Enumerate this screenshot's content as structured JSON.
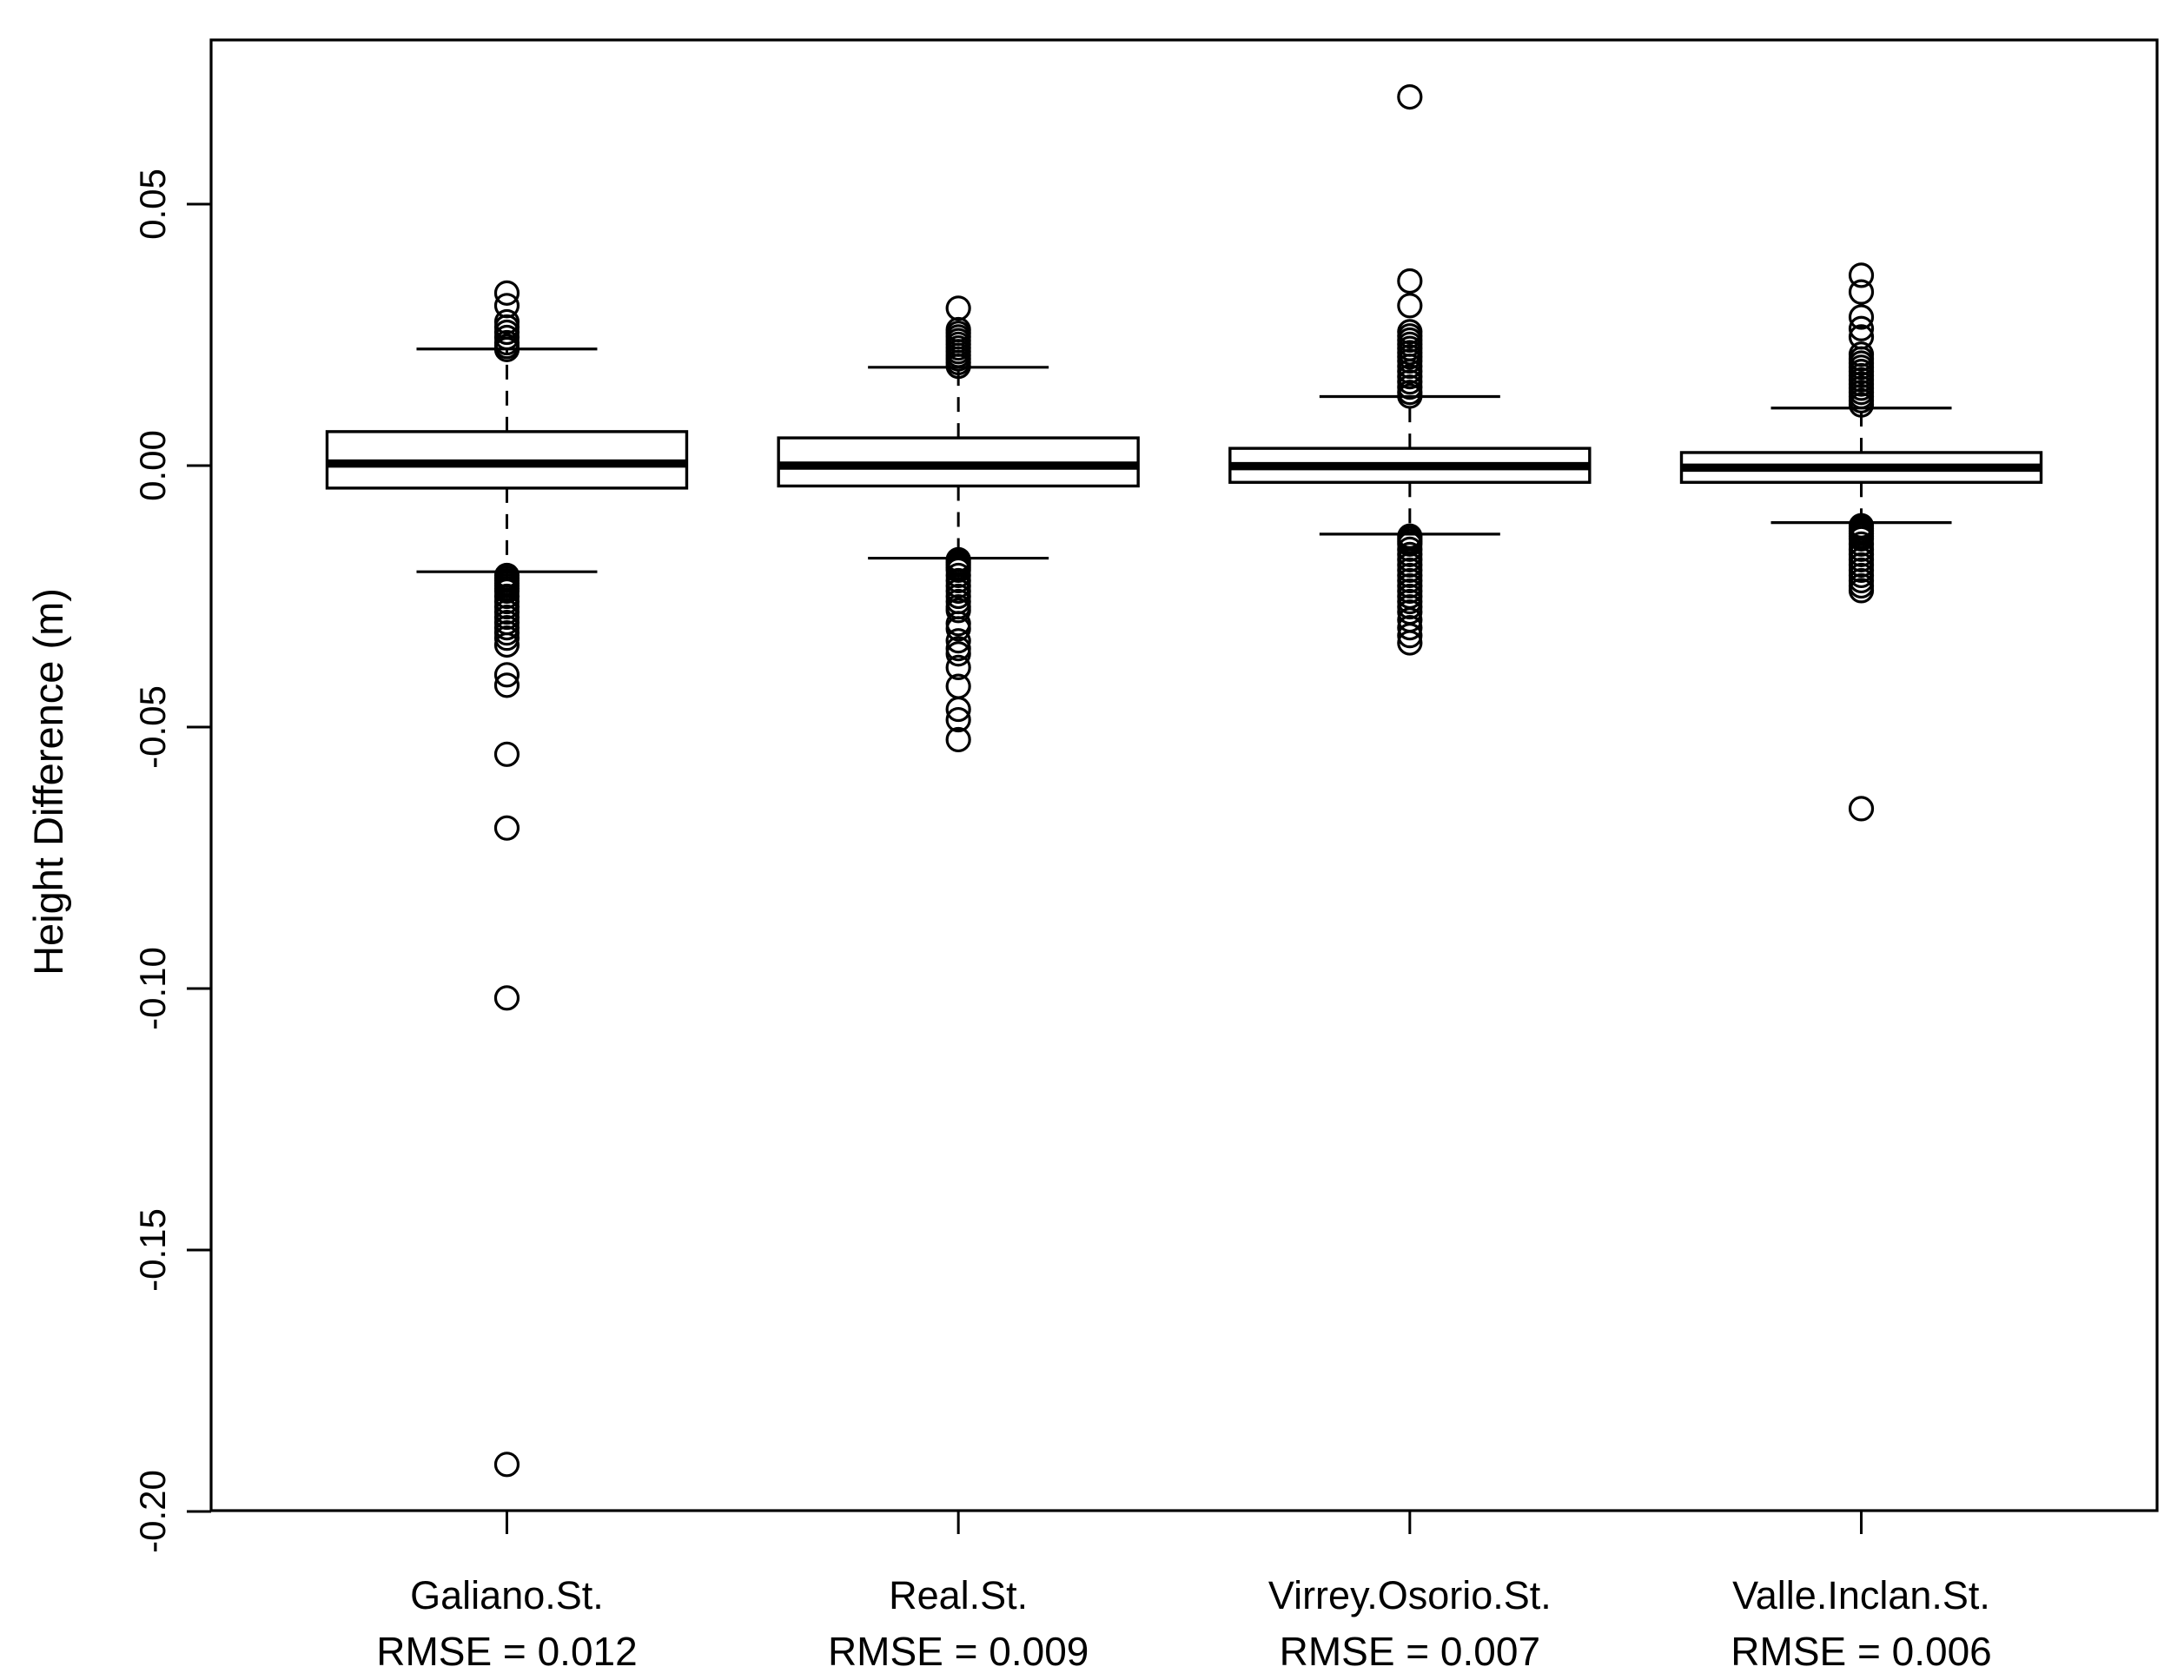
{
  "chart_data": {
    "type": "boxplot",
    "title": "",
    "xlabel": "",
    "ylabel": "Height Difference (m)",
    "ylim": [
      -0.2015,
      0.0815
    ],
    "grid": false,
    "legend": "none",
    "y_ticks": [
      {
        "value": 0.05,
        "label": "0.05"
      },
      {
        "value": 0.0,
        "label": "0.00"
      },
      {
        "value": -0.05,
        "label": "-0.05"
      },
      {
        "value": -0.1,
        "label": "-0.10"
      },
      {
        "value": -0.15,
        "label": "-0.15"
      },
      {
        "value": -0.2,
        "label": "-0.20"
      }
    ],
    "categories": [
      "Galiano.St.",
      "Real.St.",
      "Virrey.Osorio.St.",
      "Valle.Inclan.St."
    ],
    "rmse_labels": [
      "RMSE = 0.012",
      "RMSE = 0.009",
      "RMSE = 0.007",
      "RMSE = 0.006"
    ],
    "series": [
      {
        "name": "Galiano.St.",
        "rmse_label": "RMSE = 0.012",
        "whisker_low": -0.0203,
        "q1": -0.0043,
        "median": 0.0004,
        "q3": 0.0065,
        "whisker_high": 0.0223,
        "outliers_high": [
          0.033,
          0.0306,
          0.0275,
          0.0265,
          0.0255,
          0.0245,
          0.0235,
          0.0228,
          0.0222
        ],
        "outliers_low": [
          -0.021,
          -0.0215,
          -0.022,
          -0.0225,
          -0.023,
          -0.0235,
          -0.024,
          -0.025,
          -0.026,
          -0.027,
          -0.028,
          -0.029,
          -0.03,
          -0.031,
          -0.032,
          -0.033,
          -0.0343,
          -0.04,
          -0.042,
          -0.0552,
          -0.0693,
          -0.1018,
          -0.191
        ]
      },
      {
        "name": "Real.St.",
        "rmse_label": "RMSE = 0.009",
        "whisker_low": -0.0177,
        "q1": -0.0039,
        "median": 0.0,
        "q3": 0.0053,
        "whisker_high": 0.0188,
        "outliers_high": [
          0.0301,
          0.026,
          0.0253,
          0.0246,
          0.0239,
          0.0232,
          0.0225,
          0.0218,
          0.0211,
          0.0204,
          0.0197,
          0.019
        ],
        "outliers_low": [
          -0.018,
          -0.0185,
          -0.019,
          -0.0195,
          -0.02,
          -0.021,
          -0.022,
          -0.023,
          -0.024,
          -0.025,
          -0.026,
          -0.027,
          -0.0277,
          -0.0302,
          -0.0312,
          -0.0335,
          -0.035,
          -0.036,
          -0.0386,
          -0.0422,
          -0.0466,
          -0.0486,
          -0.0524
        ]
      },
      {
        "name": "Virrey.Osorio.St.",
        "rmse_label": "RMSE = 0.007",
        "whisker_low": -0.0131,
        "q1": -0.0032,
        "median": -0.0001,
        "q3": 0.0033,
        "whisker_high": 0.0132,
        "outliers_high": [
          0.0705,
          0.0353,
          0.0306,
          0.0256,
          0.0248,
          0.024,
          0.0232,
          0.0224,
          0.0216,
          0.0208,
          0.02,
          0.019,
          0.018,
          0.017,
          0.016,
          0.015,
          0.014,
          0.0133
        ],
        "outliers_low": [
          -0.0135,
          -0.014,
          -0.0145,
          -0.015,
          -0.016,
          -0.017,
          -0.018,
          -0.019,
          -0.02,
          -0.021,
          -0.022,
          -0.023,
          -0.024,
          -0.025,
          -0.026,
          -0.027,
          -0.028,
          -0.0295,
          -0.031,
          -0.0325,
          -0.0339
        ]
      },
      {
        "name": "Valle.Inclan.St.",
        "rmse_label": "RMSE = 0.006",
        "whisker_low": -0.0109,
        "q1": -0.0032,
        "median": -0.0004,
        "q3": 0.0025,
        "whisker_high": 0.011,
        "outliers_high": [
          0.0364,
          0.0332,
          0.0284,
          0.0262,
          0.0246,
          0.0213,
          0.0204,
          0.0196,
          0.0188,
          0.018,
          0.0172,
          0.0164,
          0.0156,
          0.0148,
          0.014,
          0.0132,
          0.0124,
          0.0116
        ],
        "outliers_low": [
          -0.0115,
          -0.012,
          -0.0125,
          -0.013,
          -0.0135,
          -0.014,
          -0.015,
          -0.016,
          -0.017,
          -0.018,
          -0.019,
          -0.02,
          -0.021,
          -0.022,
          -0.023,
          -0.0239,
          -0.0656
        ]
      }
    ]
  },
  "colors": {
    "stroke": "#000000",
    "background": "#ffffff",
    "box_fill": "#ffffff"
  }
}
